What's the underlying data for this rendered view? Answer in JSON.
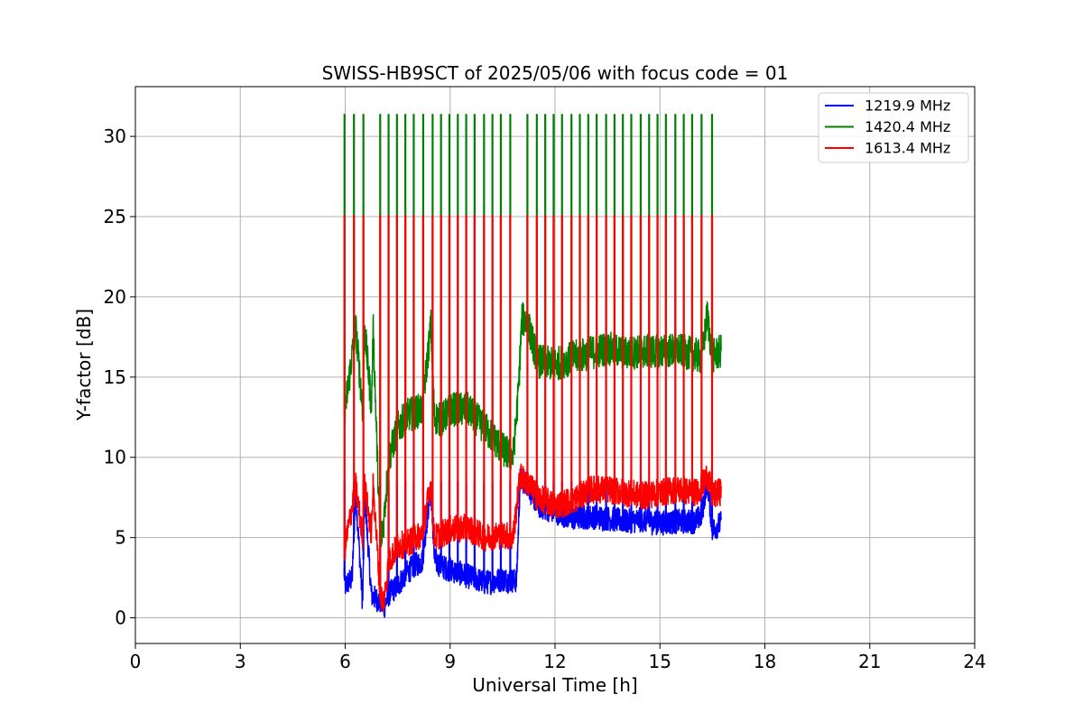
{
  "chart_data": {
    "type": "line",
    "title": "SWISS-HB9SCT of 2025/05/06 with focus code = 01",
    "xlabel": "Universal Time [h]",
    "ylabel": "Y-factor [dB]",
    "xlim": [
      0,
      24
    ],
    "ylim": [
      -1.6,
      33.1
    ],
    "xticks": [
      0,
      3,
      6,
      9,
      12,
      15,
      18,
      21,
      24
    ],
    "yticks": [
      0,
      5,
      10,
      15,
      20,
      25,
      30
    ],
    "grid": true,
    "legend_position": "top-right",
    "spikes_x": [
      5.98,
      6.25,
      6.52,
      7.0,
      7.24,
      7.48,
      7.72,
      7.96,
      8.23,
      8.5,
      8.74,
      8.98,
      9.22,
      9.46,
      9.7,
      9.97,
      10.21,
      10.45,
      10.72,
      11.21,
      11.48,
      11.72,
      11.96,
      12.2,
      12.47,
      12.71,
      12.95,
      13.19,
      13.46,
      13.7,
      13.94,
      14.18,
      14.45,
      14.69,
      14.93,
      15.17,
      15.44,
      15.68,
      15.92,
      16.19,
      16.49
    ],
    "series": [
      {
        "name": "1219.9 MHz",
        "color": "#0000ff",
        "spike_peak": 8.5,
        "x": [
          5.97,
          6.0,
          6.2,
          6.3,
          6.5,
          6.55,
          6.75,
          7.0,
          7.1,
          7.25,
          7.5,
          7.75,
          8.0,
          8.2,
          8.45,
          8.55,
          8.75,
          9.0,
          9.5,
          10.0,
          10.5,
          10.9,
          11.0,
          11.2,
          11.5,
          12.0,
          12.5,
          13.0,
          13.5,
          14.0,
          14.5,
          15.0,
          15.5,
          16.0,
          16.2,
          16.35,
          16.5,
          16.75
        ],
        "y": [
          2.8,
          2.0,
          2.5,
          7.9,
          0.8,
          7.9,
          1.4,
          1.0,
          0.6,
          1.5,
          2.0,
          2.8,
          3.3,
          3.5,
          8.2,
          3.6,
          3.2,
          3.0,
          2.6,
          2.2,
          2.4,
          2.3,
          8.6,
          8.4,
          7.0,
          6.6,
          6.2,
          6.3,
          6.2,
          6.0,
          6.1,
          5.9,
          6.0,
          6.0,
          6.4,
          8.6,
          5.5,
          5.9
        ],
        "amplitude": 0.8
      },
      {
        "name": "1420.4 MHz",
        "color": "#008000",
        "spike_peak": 31.4,
        "x": [
          5.97,
          6.0,
          6.3,
          6.5,
          6.55,
          6.75,
          6.8,
          7.0,
          7.1,
          7.25,
          7.5,
          7.75,
          8.0,
          8.2,
          8.45,
          8.55,
          8.75,
          9.0,
          9.5,
          10.0,
          10.5,
          10.8,
          10.95,
          11.05,
          11.2,
          11.5,
          12.0,
          12.5,
          13.0,
          13.5,
          14.0,
          14.5,
          15.0,
          15.5,
          16.0,
          16.2,
          16.35,
          16.5,
          16.75
        ],
        "y": [
          13.0,
          13.0,
          18.1,
          13.0,
          18.1,
          13.2,
          18.0,
          4.5,
          6.0,
          10.0,
          11.8,
          12.6,
          12.8,
          13.0,
          18.2,
          12.5,
          12.3,
          13.0,
          13.0,
          11.8,
          10.5,
          10.0,
          14.0,
          18.6,
          18.5,
          16.0,
          15.8,
          16.2,
          16.5,
          16.8,
          16.5,
          16.6,
          16.6,
          16.7,
          16.4,
          16.2,
          18.9,
          16.3,
          16.6
        ],
        "amplitude": 1.1
      },
      {
        "name": "1613.4 MHz",
        "color": "#ff0000",
        "spike_peak": 25.1,
        "x": [
          5.97,
          6.0,
          6.3,
          6.5,
          6.55,
          6.75,
          6.8,
          7.0,
          7.1,
          7.25,
          7.5,
          7.75,
          8.0,
          8.2,
          8.45,
          8.55,
          8.75,
          9.0,
          9.5,
          10.0,
          10.5,
          10.8,
          11.0,
          11.2,
          11.5,
          12.0,
          12.5,
          13.0,
          13.5,
          14.0,
          14.5,
          15.0,
          15.5,
          16.0,
          16.2,
          16.35,
          16.5,
          16.75
        ],
        "y": [
          4.0,
          4.5,
          8.2,
          5.0,
          8.3,
          5.2,
          8.3,
          1.5,
          1.0,
          3.5,
          4.5,
          4.6,
          5.0,
          5.2,
          8.4,
          5.0,
          5.2,
          5.5,
          5.6,
          5.0,
          5.2,
          5.0,
          8.8,
          8.5,
          7.5,
          7.0,
          7.3,
          8.0,
          8.0,
          7.8,
          7.6,
          7.8,
          8.0,
          7.8,
          8.2,
          8.9,
          7.6,
          7.9
        ],
        "amplitude": 0.9
      }
    ]
  }
}
